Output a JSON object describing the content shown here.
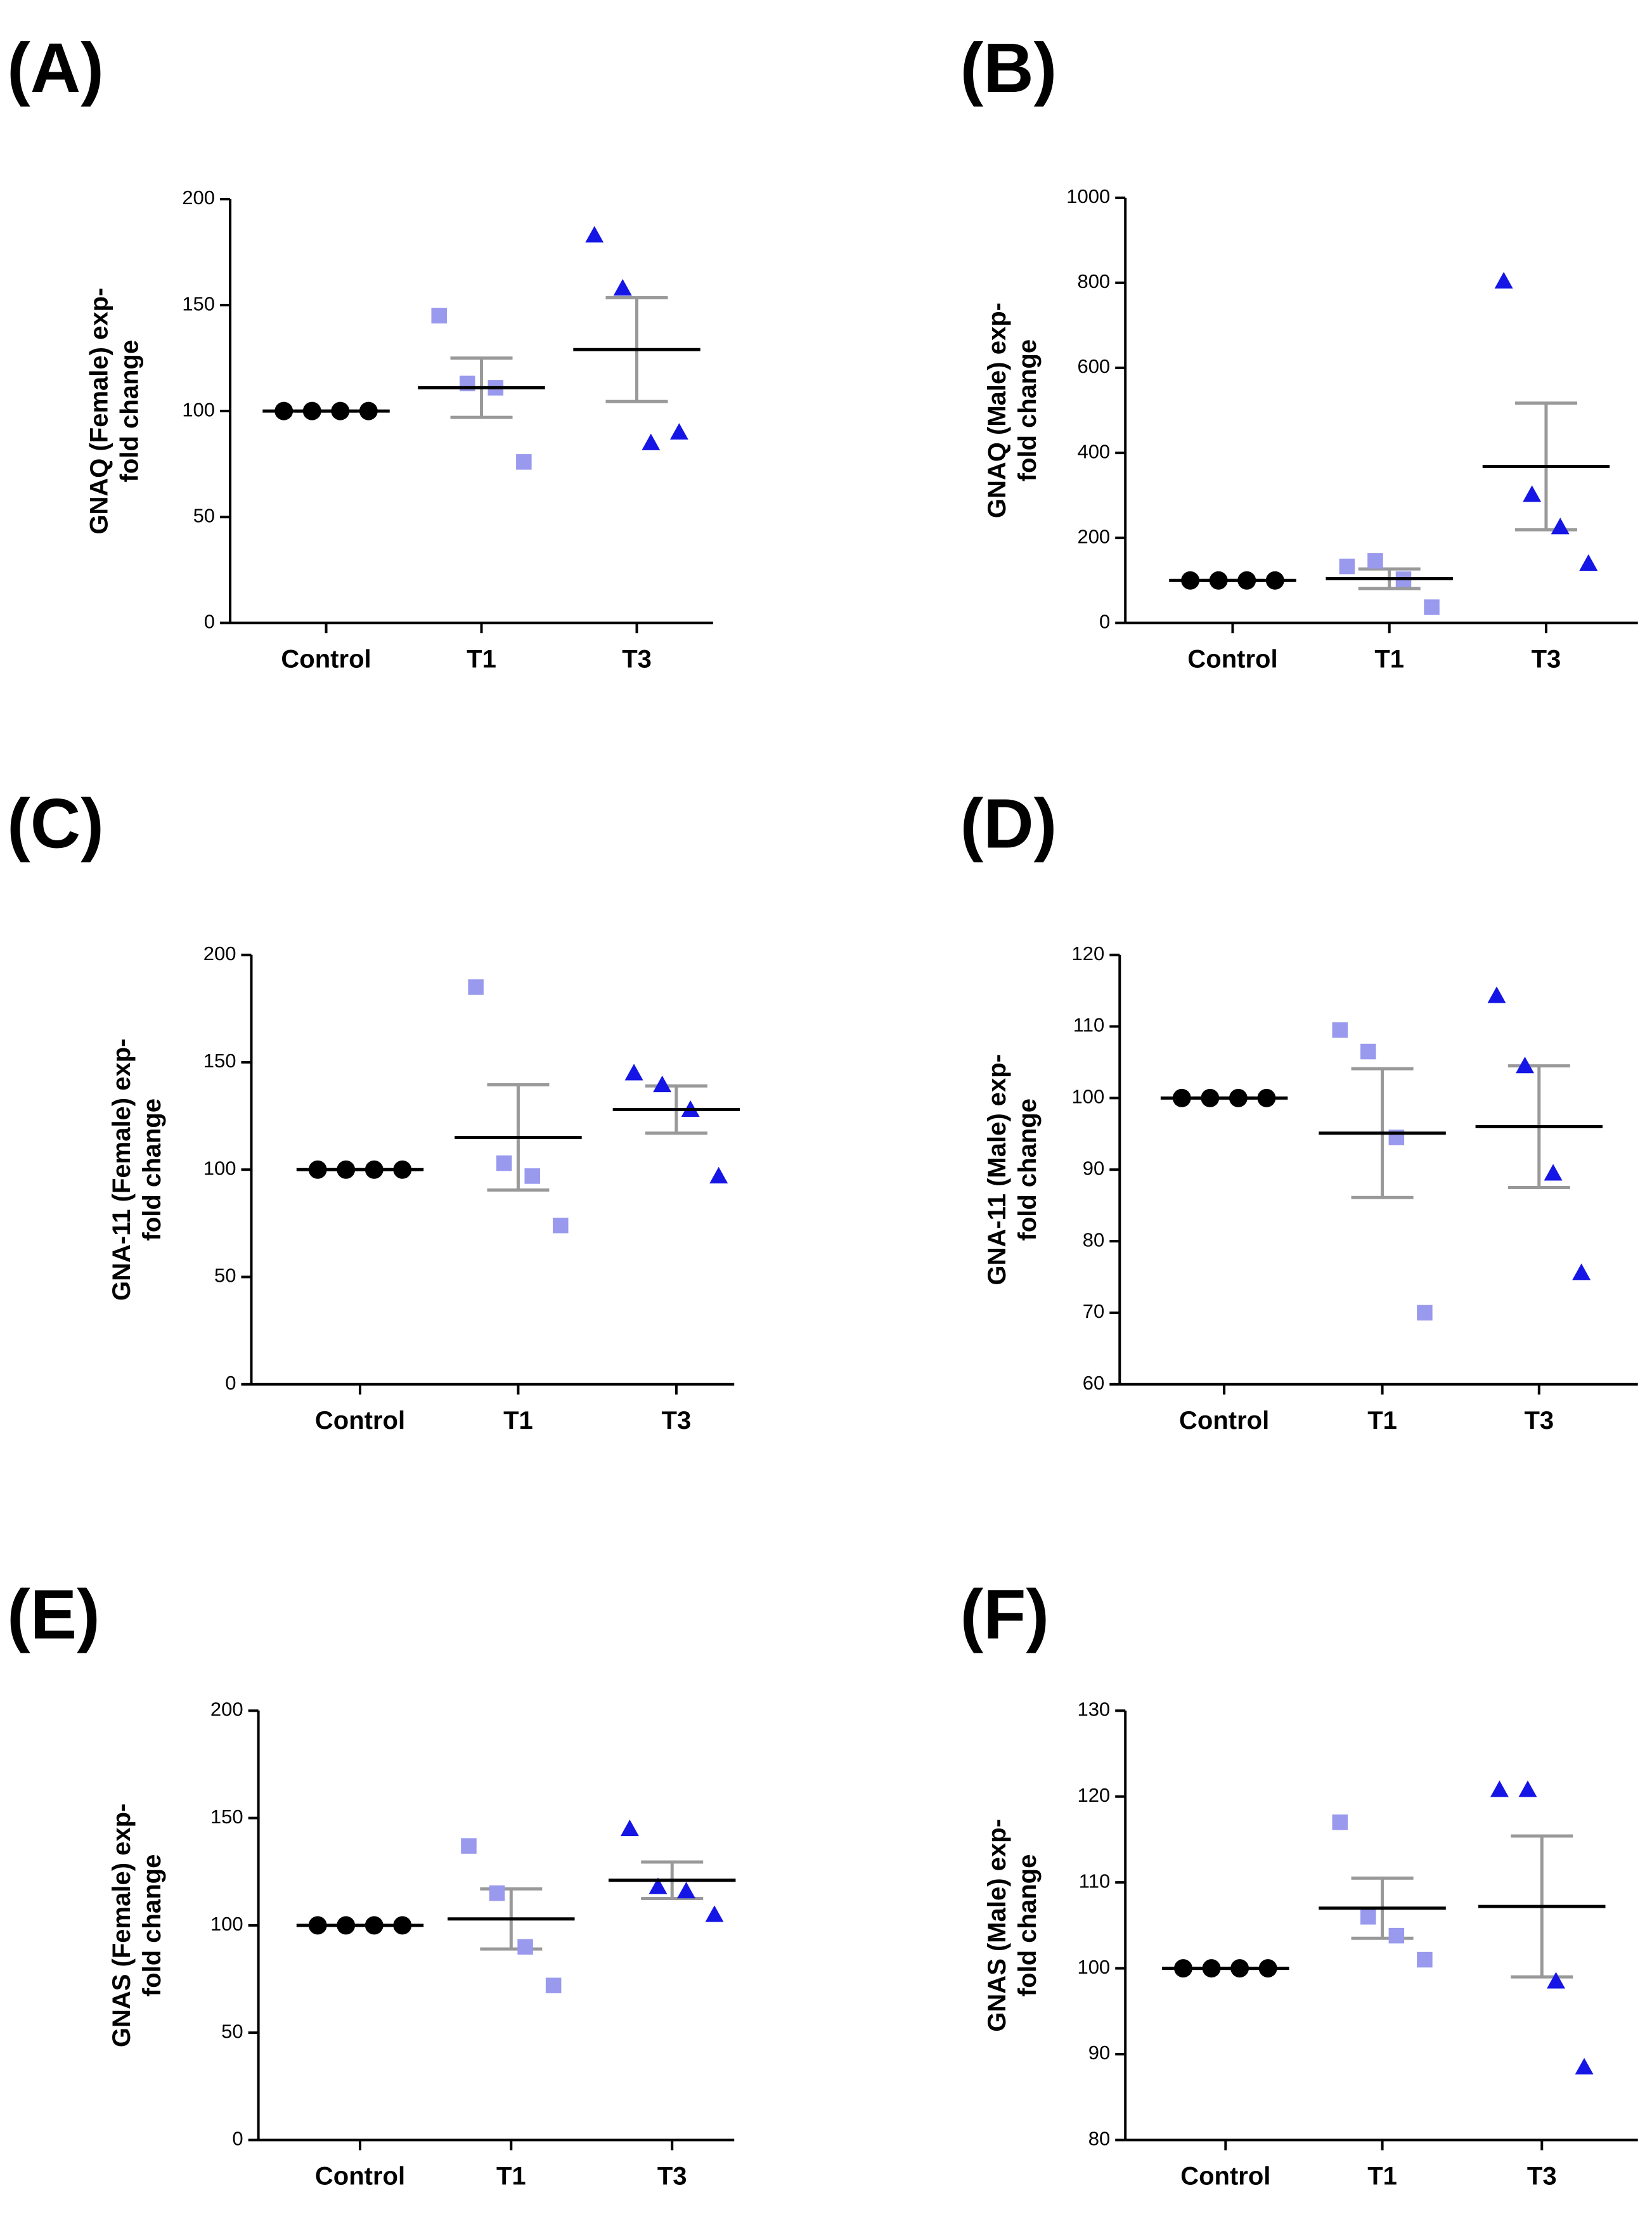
{
  "chart_data": [
    {
      "type": "dotplot",
      "label": "(A)",
      "ylabel": [
        "GNAQ (Female) exp-",
        "fold change"
      ],
      "categories": [
        "Control",
        "T1",
        "T3"
      ],
      "points": [
        [
          100,
          100,
          100,
          100
        ],
        [
          145,
          113,
          111,
          76
        ],
        [
          183,
          158,
          85,
          90
        ]
      ],
      "means": [
        100,
        111,
        129
      ],
      "sems": [
        0,
        14,
        24.5
      ],
      "colors": [
        "#000000",
        "#9999ee",
        "#1515e6"
      ],
      "markers": [
        "circle",
        "square",
        "triangle"
      ],
      "mean_color": "#000000",
      "error_color": "#999999",
      "ylim": [
        0,
        200
      ],
      "yticks": [
        0,
        50,
        100,
        150,
        200
      ]
    },
    {
      "type": "dotplot",
      "label": "(B)",
      "ylabel": [
        "GNAQ (Male) exp-",
        "fold change"
      ],
      "categories": [
        "Control",
        "T1",
        "T3"
      ],
      "points": [
        [
          100,
          100,
          100,
          100
        ],
        [
          133,
          146,
          103,
          37
        ],
        [
          804,
          302,
          226,
          140
        ]
      ],
      "means": [
        100,
        104,
        368
      ],
      "sems": [
        0,
        23,
        149
      ],
      "colors": [
        "#000000",
        "#9999ee",
        "#1515e6"
      ],
      "markers": [
        "circle",
        "square",
        "triangle"
      ],
      "mean_color": "#000000",
      "error_color": "#999999",
      "ylim": [
        0,
        1000
      ],
      "yticks": [
        0,
        200,
        400,
        600,
        800,
        1000
      ]
    },
    {
      "type": "dotplot",
      "label": "(C)",
      "ylabel": [
        "GNA-11 (Female) exp-",
        "fold change"
      ],
      "categories": [
        "Control",
        "T1",
        "T3"
      ],
      "points": [
        [
          100,
          100,
          100,
          100
        ],
        [
          185,
          103,
          97,
          74
        ],
        [
          145,
          139.5,
          128,
          97
        ]
      ],
      "means": [
        100,
        115,
        128
      ],
      "sems": [
        0,
        24.5,
        11
      ],
      "colors": [
        "#000000",
        "#9999ee",
        "#1515e6"
      ],
      "markers": [
        "circle",
        "square",
        "triangle"
      ],
      "mean_color": "#000000",
      "error_color": "#999999",
      "ylim": [
        0,
        200
      ],
      "yticks": [
        0,
        50,
        100,
        150,
        200
      ]
    },
    {
      "type": "dotplot",
      "label": "(D)",
      "ylabel": [
        "GNA-11 (Male) exp-",
        "fold change"
      ],
      "categories": [
        "Control",
        "T1",
        "T3"
      ],
      "points": [
        [
          100,
          100,
          100,
          100
        ],
        [
          109.5,
          106.5,
          94.5,
          70
        ],
        [
          114.3,
          104.5,
          89.5,
          75.6
        ]
      ],
      "means": [
        100,
        95.1,
        96
      ],
      "sems": [
        0,
        9,
        8.5
      ],
      "colors": [
        "#000000",
        "#9999ee",
        "#1515e6"
      ],
      "markers": [
        "circle",
        "square",
        "triangle"
      ],
      "mean_color": "#000000",
      "error_color": "#999999",
      "ylim": [
        60,
        120
      ],
      "yticks": [
        60,
        70,
        80,
        90,
        100,
        110,
        120
      ]
    },
    {
      "type": "dotplot",
      "label": "(E)",
      "ylabel": [
        "GNAS (Female) exp-",
        "fold change"
      ],
      "categories": [
        "Control",
        "T1",
        "T3"
      ],
      "points": [
        [
          100,
          100,
          100,
          100
        ],
        [
          137,
          115,
          90,
          72
        ],
        [
          145,
          118,
          116,
          105
        ]
      ],
      "means": [
        100,
        103,
        121
      ],
      "sems": [
        0,
        14,
        8.5
      ],
      "colors": [
        "#000000",
        "#9999ee",
        "#1515e6"
      ],
      "markers": [
        "circle",
        "square",
        "triangle"
      ],
      "mean_color": "#000000",
      "error_color": "#999999",
      "ylim": [
        0,
        200
      ],
      "yticks": [
        0,
        50,
        100,
        150,
        200
      ]
    },
    {
      "type": "dotplot",
      "label": "(F)",
      "ylabel": [
        "GNAS (Male) exp-",
        "fold change"
      ],
      "categories": [
        "Control",
        "T1",
        "T3"
      ],
      "points": [
        [
          100,
          100,
          100,
          100
        ],
        [
          117,
          106,
          103.8,
          101
        ],
        [
          120.8,
          120.8,
          98.5,
          88.5
        ]
      ],
      "means": [
        100,
        107,
        107.2
      ],
      "sems": [
        0,
        3.5,
        8.2
      ],
      "colors": [
        "#000000",
        "#9999ee",
        "#1515e6"
      ],
      "markers": [
        "circle",
        "square",
        "triangle"
      ],
      "mean_color": "#000000",
      "error_color": "#999999",
      "ylim": [
        80,
        130
      ],
      "yticks": [
        80,
        90,
        100,
        110,
        120,
        130
      ]
    }
  ]
}
